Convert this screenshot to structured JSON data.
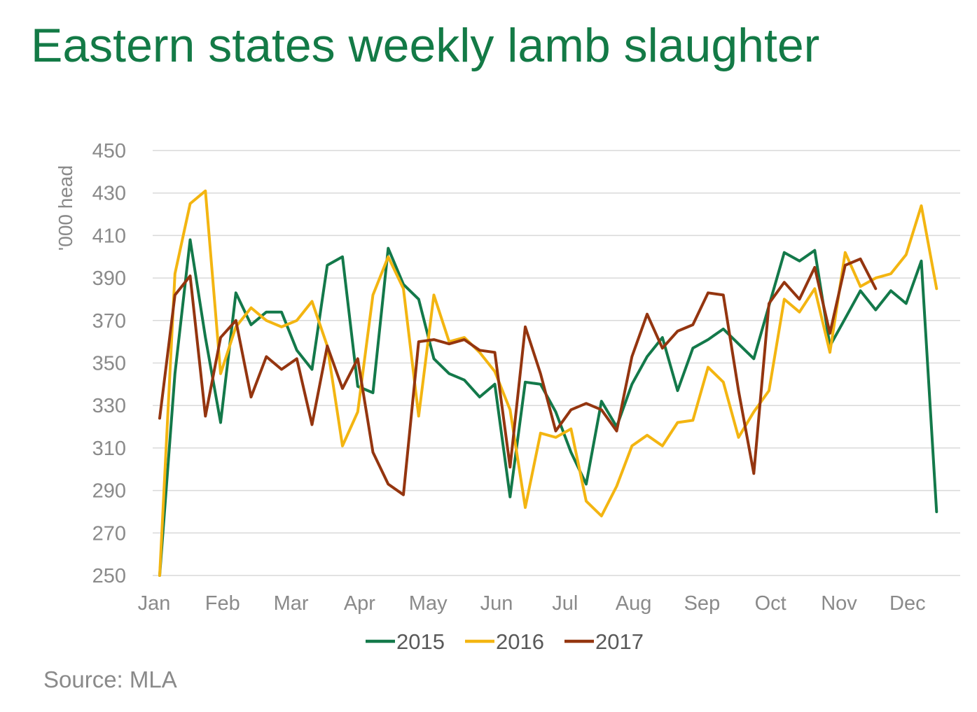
{
  "title": "Eastern states weekly lamb slaughter",
  "source": "Source: MLA",
  "chart_data": {
    "type": "line",
    "title": "Eastern states weekly lamb slaughter",
    "xlabel": "",
    "ylabel": "'000 head",
    "ylim": [
      250,
      450
    ],
    "y_ticks": [
      450,
      430,
      410,
      390,
      370,
      350,
      330,
      310,
      290,
      270,
      250
    ],
    "x_ticks": [
      "Jan",
      "Feb",
      "Mar",
      "Apr",
      "May",
      "Jun",
      "Jul",
      "Aug",
      "Sep",
      "Oct",
      "Nov",
      "Dec"
    ],
    "x_unit": "week",
    "x_range": [
      1,
      53
    ],
    "grid": true,
    "legend_position": "bottom",
    "series": [
      {
        "name": "2015",
        "color": "#13794a",
        "values": [
          250,
          345,
          408,
          362,
          322,
          383,
          368,
          374,
          374,
          356,
          347,
          396,
          400,
          339,
          336,
          404,
          387,
          380,
          352,
          345,
          342,
          334,
          340,
          287,
          341,
          340,
          327,
          308,
          293,
          332,
          320,
          340,
          353,
          362,
          337,
          357,
          361,
          366,
          359,
          352,
          377,
          402,
          398,
          403,
          358,
          371,
          384,
          375,
          384,
          378,
          398,
          280
        ]
      },
      {
        "name": "2016",
        "color": "#f3b511",
        "values": [
          250,
          392,
          425,
          431,
          345,
          367,
          376,
          370,
          367,
          370,
          379,
          358,
          311,
          327,
          382,
          400,
          385,
          325,
          382,
          360,
          362,
          355,
          346,
          328,
          282,
          317,
          315,
          319,
          285,
          278,
          292,
          311,
          316,
          311,
          322,
          323,
          348,
          341,
          315,
          327,
          337,
          380,
          374,
          385,
          355,
          402,
          386,
          390,
          392,
          401,
          424,
          385
        ]
      },
      {
        "name": "2017",
        "color": "#94350f",
        "values": [
          324,
          382,
          391,
          325,
          362,
          370,
          334,
          353,
          347,
          352,
          321,
          358,
          338,
          352,
          308,
          293,
          288,
          360,
          361,
          359,
          361,
          356,
          355,
          301,
          367,
          345,
          318,
          328,
          331,
          328,
          318,
          353,
          373,
          357,
          365,
          368,
          383,
          382,
          337,
          298,
          378,
          388,
          380,
          395,
          364,
          396,
          399,
          385
        ]
      }
    ]
  }
}
